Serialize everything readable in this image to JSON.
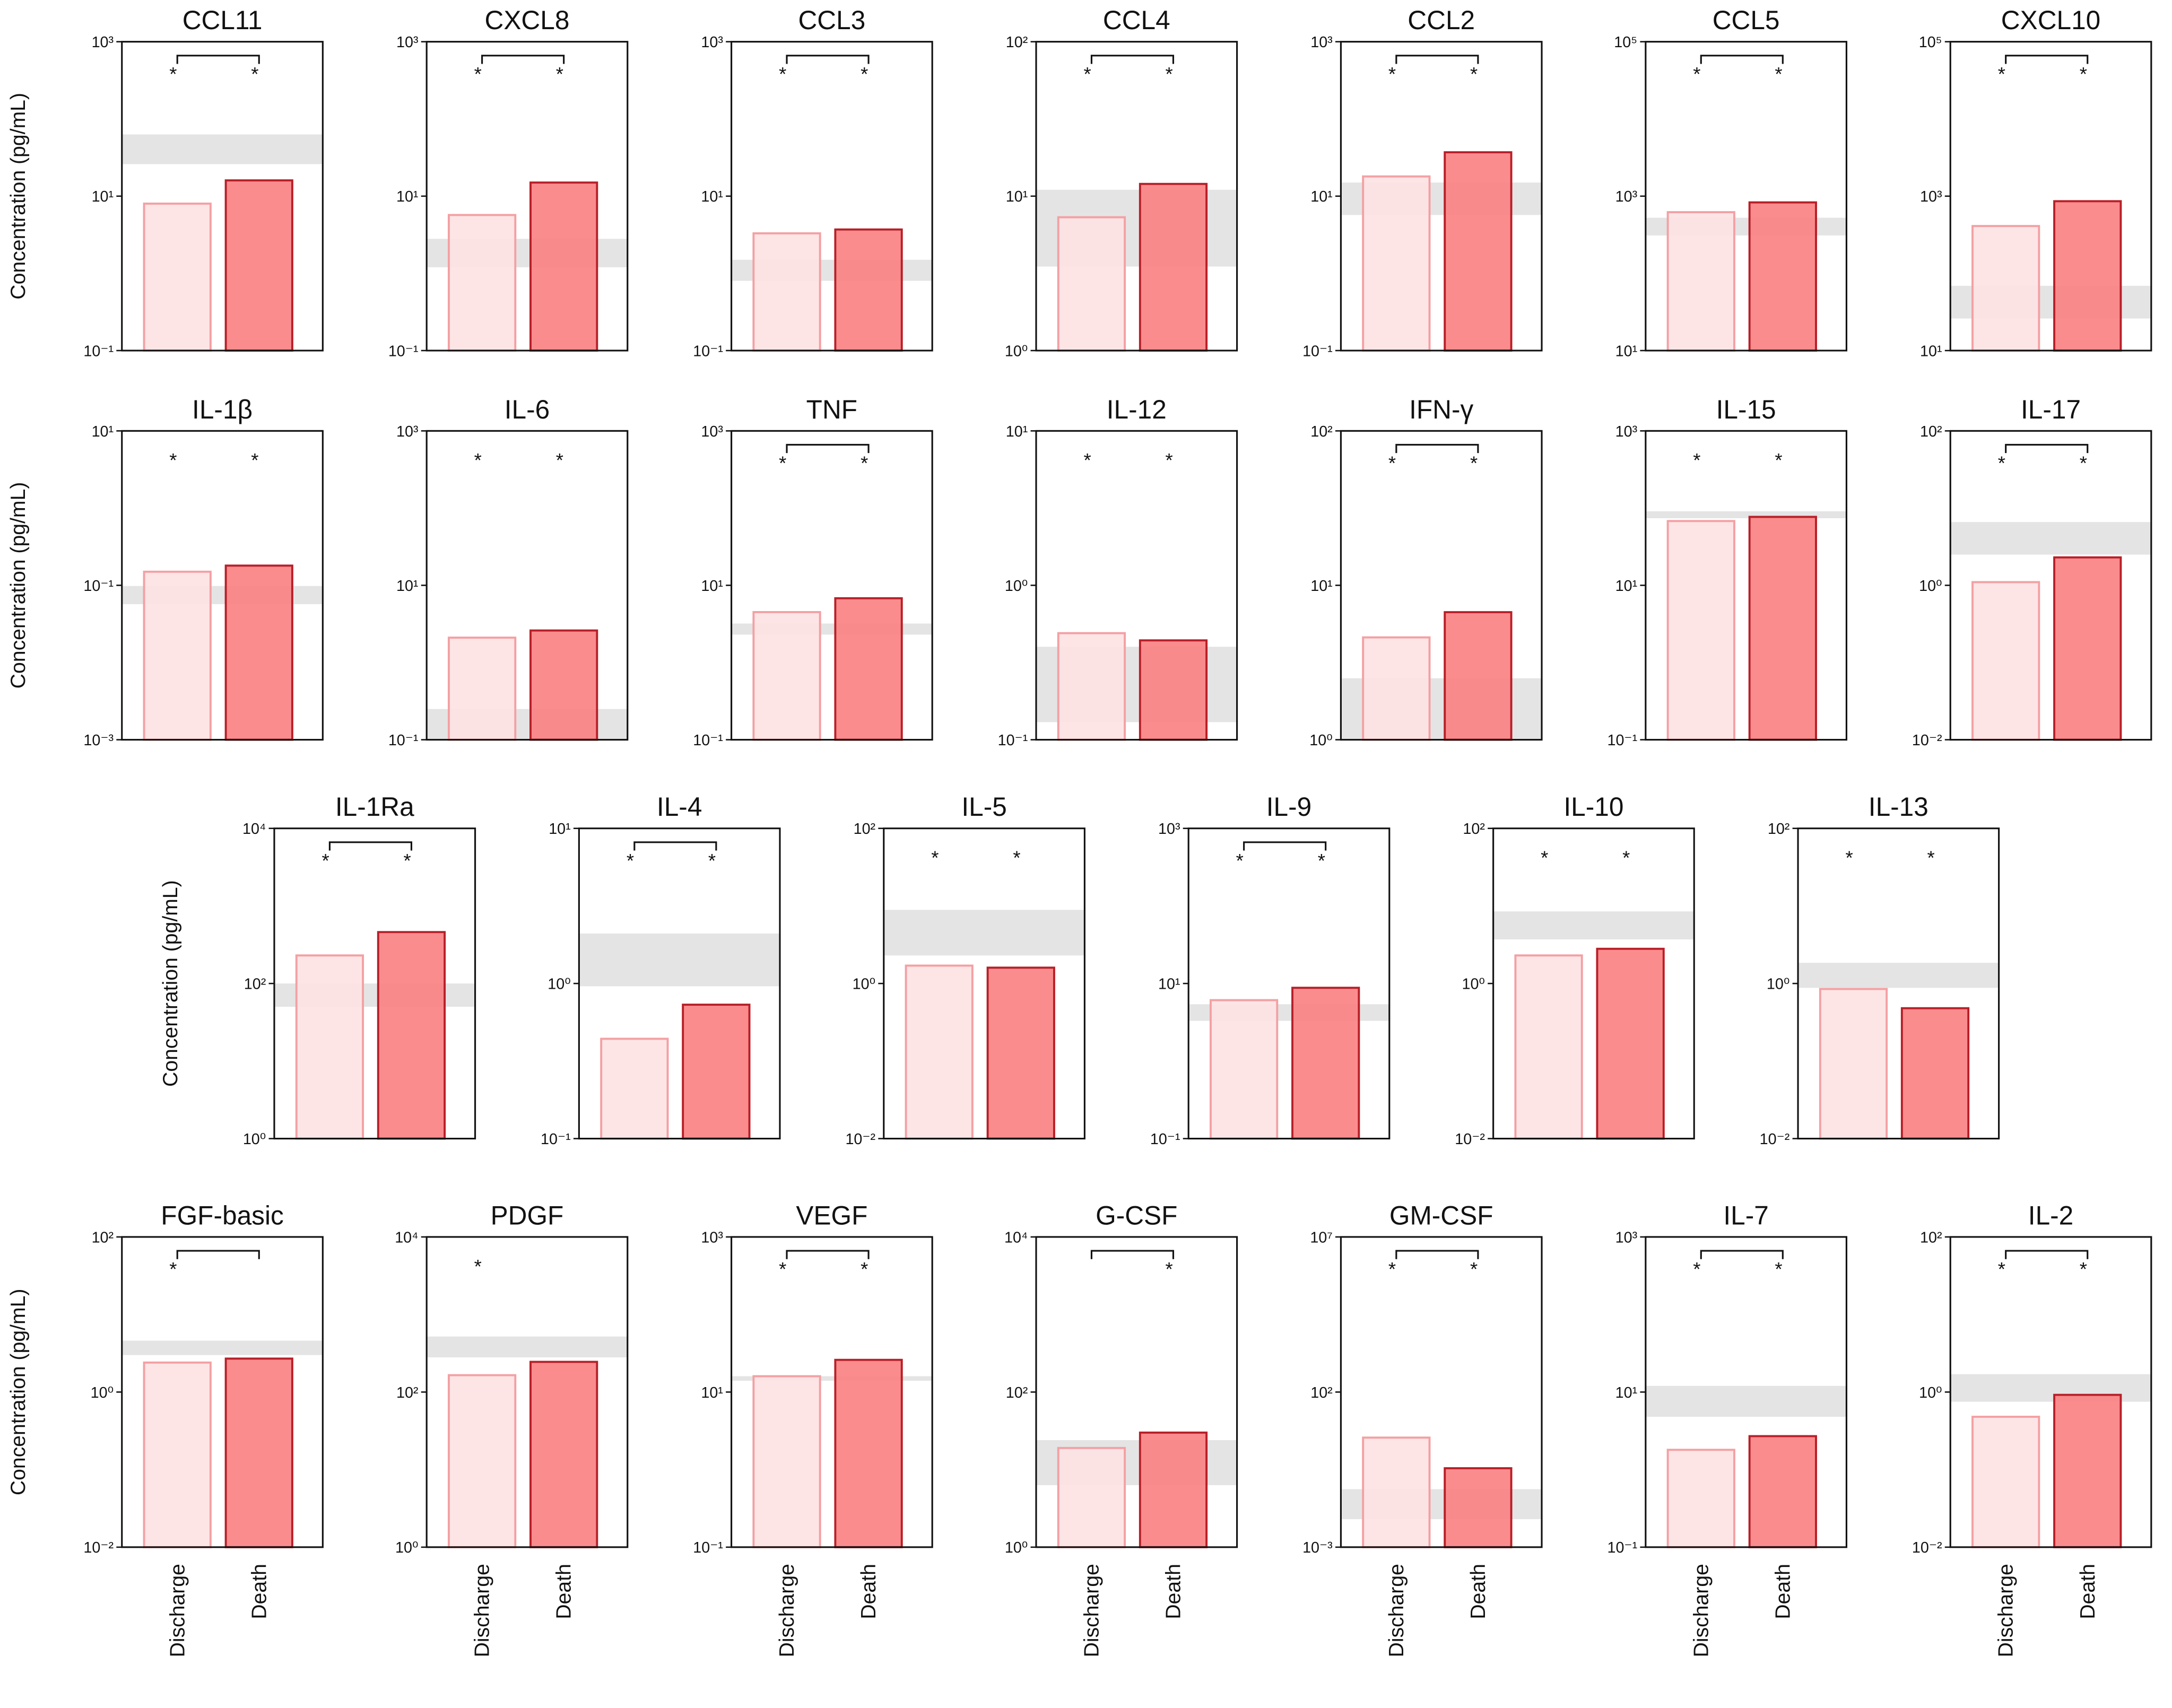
{
  "chart_data": [
    {
      "type": "bar",
      "title": "CCL11",
      "ylabel": "Concentration (pg/mL)",
      "values": [
        8,
        16
      ],
      "log": true,
      "ylim": [
        0.1,
        1000
      ],
      "yticks": [
        {
          "value": 0.1,
          "label": "10⁻¹"
        },
        {
          "value": 10,
          "label": "10¹"
        },
        {
          "value": 1000,
          "label": "10³"
        }
      ],
      "reference_range": [
        26,
        63
      ],
      "significance": true,
      "annotations": [
        "*",
        "*"
      ],
      "colors": [
        "#fde2e3",
        "#f97f82"
      ],
      "edge_colors": [
        "#f4a0a3",
        "#b81f27"
      ]
    },
    {
      "type": "bar",
      "title": "CXCL8",
      "values": [
        5.7,
        15
      ],
      "log": true,
      "ylim": [
        0.1,
        1000
      ],
      "yticks": [
        {
          "value": 0.1,
          "label": "10⁻¹"
        },
        {
          "value": 10,
          "label": "10¹"
        },
        {
          "value": 1000,
          "label": "10³"
        }
      ],
      "reference_range": [
        1.2,
        2.8
      ],
      "significance": true,
      "annotations": [
        "*",
        "*"
      ],
      "colors": [
        "#fde2e3",
        "#f97f82"
      ],
      "edge_colors": [
        "#f4a0a3",
        "#b81f27"
      ]
    },
    {
      "type": "bar",
      "title": "CCL3",
      "values": [
        3.3,
        3.7
      ],
      "log": true,
      "ylim": [
        0.1,
        1000
      ],
      "yticks": [
        {
          "value": 0.1,
          "label": "10⁻¹"
        },
        {
          "value": 10,
          "label": "10¹"
        },
        {
          "value": 1000,
          "label": "10³"
        }
      ],
      "reference_range": [
        0.8,
        1.5
      ],
      "significance": true,
      "annotations": [
        "*",
        "*"
      ],
      "colors": [
        "#fde2e3",
        "#f97f82"
      ],
      "edge_colors": [
        "#f4a0a3",
        "#b81f27"
      ]
    },
    {
      "type": "bar",
      "title": "CCL4",
      "values": [
        7.3,
        12
      ],
      "log": true,
      "ylim": [
        1,
        100
      ],
      "yticks": [
        {
          "value": 1,
          "label": "10⁰"
        },
        {
          "value": 10,
          "label": "10¹"
        },
        {
          "value": 100,
          "label": "10²"
        }
      ],
      "reference_range": [
        3.5,
        11
      ],
      "significance": true,
      "annotations": [
        "*",
        "*"
      ],
      "colors": [
        "#fde2e3",
        "#f97f82"
      ],
      "edge_colors": [
        "#f4a0a3",
        "#b81f27"
      ]
    },
    {
      "type": "bar",
      "title": "CCL2",
      "values": [
        18,
        37
      ],
      "log": true,
      "ylim": [
        0.1,
        1000
      ],
      "yticks": [
        {
          "value": 0.1,
          "label": "10⁻¹"
        },
        {
          "value": 10,
          "label": "10¹"
        },
        {
          "value": 1000,
          "label": "10³"
        }
      ],
      "reference_range": [
        5.7,
        15
      ],
      "significance": true,
      "annotations": [
        "*",
        "*"
      ],
      "colors": [
        "#fde2e3",
        "#f97f82"
      ],
      "edge_colors": [
        "#f4a0a3",
        "#b81f27"
      ]
    },
    {
      "type": "bar",
      "title": "CCL5",
      "values": [
        620,
        830
      ],
      "log": true,
      "ylim": [
        10,
        100000
      ],
      "yticks": [
        {
          "value": 10,
          "label": "10¹"
        },
        {
          "value": 1000,
          "label": "10³"
        },
        {
          "value": 100000,
          "label": "10⁵"
        }
      ],
      "reference_range": [
        310,
        525
      ],
      "significance": true,
      "annotations": [
        "*",
        "*"
      ],
      "colors": [
        "#fde2e3",
        "#f97f82"
      ],
      "edge_colors": [
        "#f4a0a3",
        "#b81f27"
      ]
    },
    {
      "type": "bar",
      "title": "CXCL10",
      "values": [
        410,
        860
      ],
      "log": true,
      "ylim": [
        10,
        100000
      ],
      "yticks": [
        {
          "value": 10,
          "label": "10¹"
        },
        {
          "value": 1000,
          "label": "10³"
        },
        {
          "value": 100000,
          "label": "10⁵"
        }
      ],
      "reference_range": [
        26,
        69
      ],
      "significance": true,
      "annotations": [
        "*",
        "*"
      ],
      "colors": [
        "#fde2e3",
        "#f97f82"
      ],
      "edge_colors": [
        "#f4a0a3",
        "#b81f27"
      ]
    },
    {
      "type": "bar",
      "title": "IL-1β",
      "ylabel": "Concentration (pg/mL)",
      "values": [
        0.15,
        0.18
      ],
      "log": true,
      "ylim": [
        0.001,
        10
      ],
      "yticks": [
        {
          "value": 0.001,
          "label": "10⁻³"
        },
        {
          "value": 0.1,
          "label": "10⁻¹"
        },
        {
          "value": 10,
          "label": "10¹"
        }
      ],
      "reference_range": [
        0.057,
        0.098
      ],
      "significance": false,
      "annotations": [
        "*",
        "*"
      ],
      "colors": [
        "#fde2e3",
        "#f97f82"
      ],
      "edge_colors": [
        "#f4a0a3",
        "#b81f27"
      ]
    },
    {
      "type": "bar",
      "title": "IL-6",
      "values": [
        2.1,
        2.6
      ],
      "log": true,
      "ylim": [
        0.1,
        1000
      ],
      "yticks": [
        {
          "value": 0.1,
          "label": "10⁻¹"
        },
        {
          "value": 10,
          "label": "10¹"
        },
        {
          "value": 1000,
          "label": "10³"
        }
      ],
      "reference_range": [
        0.1,
        0.25
      ],
      "significance": false,
      "annotations": [
        "*",
        "*"
      ],
      "colors": [
        "#fde2e3",
        "#f97f82"
      ],
      "edge_colors": [
        "#f4a0a3",
        "#b81f27"
      ]
    },
    {
      "type": "bar",
      "title": "TNF",
      "values": [
        4.5,
        6.8
      ],
      "log": true,
      "ylim": [
        0.1,
        1000
      ],
      "yticks": [
        {
          "value": 0.1,
          "label": "10⁻¹"
        },
        {
          "value": 10,
          "label": "10¹"
        },
        {
          "value": 1000,
          "label": "10³"
        }
      ],
      "reference_range": [
        2.3,
        3.2
      ],
      "significance": true,
      "annotations": [
        "*",
        "*"
      ],
      "colors": [
        "#fde2e3",
        "#f97f82"
      ],
      "edge_colors": [
        "#f4a0a3",
        "#b81f27"
      ]
    },
    {
      "type": "bar",
      "title": "IL-12",
      "values": [
        0.49,
        0.44
      ],
      "log": true,
      "ylim": [
        0.1,
        10
      ],
      "yticks": [
        {
          "value": 0.1,
          "label": "10⁻¹"
        },
        {
          "value": 1,
          "label": "10⁰"
        },
        {
          "value": 10,
          "label": "10¹"
        }
      ],
      "reference_range": [
        0.13,
        0.4
      ],
      "significance": false,
      "annotations": [
        "*",
        "*"
      ],
      "colors": [
        "#fde2e3",
        "#f97f82"
      ],
      "edge_colors": [
        "#f4a0a3",
        "#b81f27"
      ]
    },
    {
      "type": "bar",
      "title": "IFN-γ",
      "values": [
        4.6,
        6.7
      ],
      "log": true,
      "ylim": [
        1,
        100
      ],
      "yticks": [
        {
          "value": 1,
          "label": "10⁰"
        },
        {
          "value": 10,
          "label": "10¹"
        },
        {
          "value": 100,
          "label": "10²"
        }
      ],
      "reference_range": [
        1,
        2.5
      ],
      "significance": true,
      "annotations": [
        "*",
        "*"
      ],
      "colors": [
        "#fde2e3",
        "#f97f82"
      ],
      "edge_colors": [
        "#f4a0a3",
        "#b81f27"
      ]
    },
    {
      "type": "bar",
      "title": "IL-15",
      "values": [
        68,
        77
      ],
      "log": true,
      "ylim": [
        0.1,
        1000
      ],
      "yticks": [
        {
          "value": 0.1,
          "label": "10⁻¹"
        },
        {
          "value": 10,
          "label": "10¹"
        },
        {
          "value": 1000,
          "label": "10³"
        }
      ],
      "reference_range": [
        74,
        91
      ],
      "significance": false,
      "annotations": [
        "*",
        "*"
      ],
      "colors": [
        "#fde2e3",
        "#f97f82"
      ],
      "edge_colors": [
        "#f4a0a3",
        "#b81f27"
      ]
    },
    {
      "type": "bar",
      "title": "IL-17",
      "values": [
        1.1,
        2.3
      ],
      "log": true,
      "ylim": [
        0.01,
        100
      ],
      "yticks": [
        {
          "value": 0.01,
          "label": "10⁻²"
        },
        {
          "value": 1,
          "label": "10⁰"
        },
        {
          "value": 100,
          "label": "10²"
        }
      ],
      "reference_range": [
        2.5,
        6.6
      ],
      "significance": true,
      "annotations": [
        "*",
        "*"
      ],
      "colors": [
        "#fde2e3",
        "#f97f82"
      ],
      "edge_colors": [
        "#f4a0a3",
        "#b81f27"
      ]
    },
    {
      "type": "bar",
      "title": "IL-1Ra",
      "ylabel": "Concentration (pg/mL)",
      "values": [
        230,
        460
      ],
      "log": true,
      "ylim": [
        1,
        10000
      ],
      "yticks": [
        {
          "value": 1,
          "label": "10⁰"
        },
        {
          "value": 100,
          "label": "10²"
        },
        {
          "value": 10000,
          "label": "10⁴"
        }
      ],
      "reference_range": [
        50,
        100
      ],
      "significance": true,
      "annotations": [
        "*",
        "*"
      ],
      "colors": [
        "#fde2e3",
        "#f97f82"
      ],
      "edge_colors": [
        "#f4a0a3",
        "#b81f27"
      ]
    },
    {
      "type": "bar",
      "title": "IL-4",
      "values": [
        0.44,
        0.73
      ],
      "log": true,
      "ylim": [
        0.1,
        10
      ],
      "yticks": [
        {
          "value": 0.1,
          "label": "10⁻¹"
        },
        {
          "value": 1,
          "label": "10⁰"
        },
        {
          "value": 10,
          "label": "10¹"
        }
      ],
      "reference_range": [
        0.96,
        2.1
      ],
      "significance": true,
      "annotations": [
        "*",
        "*"
      ],
      "colors": [
        "#fde2e3",
        "#f97f82"
      ],
      "edge_colors": [
        "#f4a0a3",
        "#b81f27"
      ]
    },
    {
      "type": "bar",
      "title": "IL-5",
      "values": [
        1.7,
        1.6
      ],
      "log": true,
      "ylim": [
        0.01,
        100
      ],
      "yticks": [
        {
          "value": 0.01,
          "label": "10⁻²"
        },
        {
          "value": 1,
          "label": "10⁰"
        },
        {
          "value": 100,
          "label": "10²"
        }
      ],
      "reference_range": [
        2.3,
        8.9
      ],
      "significance": false,
      "annotations": [
        "*",
        "*"
      ],
      "colors": [
        "#fde2e3",
        "#f97f82"
      ],
      "edge_colors": [
        "#f4a0a3",
        "#b81f27"
      ]
    },
    {
      "type": "bar",
      "title": "IL-9",
      "values": [
        6.1,
        8.8
      ],
      "log": true,
      "ylim": [
        0.1,
        1000
      ],
      "yticks": [
        {
          "value": 0.1,
          "label": "10⁻¹"
        },
        {
          "value": 10,
          "label": "10¹"
        },
        {
          "value": 1000,
          "label": "10³"
        }
      ],
      "reference_range": [
        3.3,
        5.4
      ],
      "significance": true,
      "annotations": [
        "*",
        "*"
      ],
      "colors": [
        "#fde2e3",
        "#f97f82"
      ],
      "edge_colors": [
        "#f4a0a3",
        "#b81f27"
      ]
    },
    {
      "type": "bar",
      "title": "IL-10",
      "values": [
        2.3,
        2.8
      ],
      "log": true,
      "ylim": [
        0.01,
        100
      ],
      "yticks": [
        {
          "value": 0.01,
          "label": "10⁻²"
        },
        {
          "value": 1,
          "label": "10⁰"
        },
        {
          "value": 100,
          "label": "10²"
        }
      ],
      "reference_range": [
        3.7,
        8.5
      ],
      "significance": false,
      "annotations": [
        "*",
        "*"
      ],
      "colors": [
        "#fde2e3",
        "#f97f82"
      ],
      "edge_colors": [
        "#f4a0a3",
        "#b81f27"
      ]
    },
    {
      "type": "bar",
      "title": "IL-13",
      "values": [
        0.85,
        0.48
      ],
      "log": true,
      "ylim": [
        0.01,
        100
      ],
      "yticks": [
        {
          "value": 0.01,
          "label": "10⁻²"
        },
        {
          "value": 1,
          "label": "10⁰"
        },
        {
          "value": 100,
          "label": "10²"
        }
      ],
      "reference_range": [
        0.88,
        1.85
      ],
      "significance": false,
      "annotations": [
        "*",
        "*"
      ],
      "colors": [
        "#fde2e3",
        "#f97f82"
      ],
      "edge_colors": [
        "#f4a0a3",
        "#b81f27"
      ]
    },
    {
      "type": "bar",
      "title": "FGF-basic",
      "ylabel": "Concentration (pg/mL)",
      "categories": [
        "Discharge",
        "Death"
      ],
      "values": [
        2.4,
        2.7
      ],
      "log": true,
      "ylim": [
        0.01,
        100
      ],
      "yticks": [
        {
          "value": 0.01,
          "label": "10⁻²"
        },
        {
          "value": 1,
          "label": "10⁰"
        },
        {
          "value": 100,
          "label": "10²"
        }
      ],
      "reference_range": [
        3.0,
        4.6
      ],
      "significance": true,
      "annotations": [
        "*",
        null
      ],
      "colors": [
        "#fde2e3",
        "#f97f82"
      ],
      "edge_colors": [
        "#f4a0a3",
        "#b81f27"
      ]
    },
    {
      "type": "bar",
      "title": "PDGF",
      "categories": [
        "Discharge",
        "Death"
      ],
      "values": [
        165,
        245
      ],
      "log": true,
      "ylim": [
        1,
        10000
      ],
      "yticks": [
        {
          "value": 1,
          "label": "10⁰"
        },
        {
          "value": 100,
          "label": "10²"
        },
        {
          "value": 10000,
          "label": "10⁴"
        }
      ],
      "reference_range": [
        280,
        520
      ],
      "significance": false,
      "annotations": [
        "*",
        null
      ],
      "colors": [
        "#fde2e3",
        "#f97f82"
      ],
      "edge_colors": [
        "#f4a0a3",
        "#b81f27"
      ]
    },
    {
      "type": "bar",
      "title": "VEGF",
      "categories": [
        "Discharge",
        "Death"
      ],
      "values": [
        16,
        26
      ],
      "log": true,
      "ylim": [
        0.1,
        1000
      ],
      "yticks": [
        {
          "value": 0.1,
          "label": "10⁻¹"
        },
        {
          "value": 10,
          "label": "10¹"
        },
        {
          "value": 1000,
          "label": "10³"
        }
      ],
      "reference_range": [
        14,
        16
      ],
      "significance": true,
      "annotations": [
        "*",
        "*"
      ],
      "colors": [
        "#fde2e3",
        "#f97f82"
      ],
      "edge_colors": [
        "#f4a0a3",
        "#b81f27"
      ]
    },
    {
      "type": "bar",
      "title": "G-CSF",
      "categories": [
        "Discharge",
        "Death"
      ],
      "values": [
        19,
        30
      ],
      "log": true,
      "ylim": [
        1,
        10000
      ],
      "yticks": [
        {
          "value": 1,
          "label": "10⁰"
        },
        {
          "value": 100,
          "label": "10²"
        },
        {
          "value": 10000,
          "label": "10⁴"
        }
      ],
      "reference_range": [
        6.3,
        24
      ],
      "significance": true,
      "annotations": [
        null,
        "*"
      ],
      "colors": [
        "#fde2e3",
        "#f97f82"
      ],
      "edge_colors": [
        "#f4a0a3",
        "#b81f27"
      ]
    },
    {
      "type": "bar",
      "title": "GM-CSF",
      "categories": [
        "Discharge",
        "Death"
      ],
      "values": [
        3.4,
        0.35
      ],
      "log": true,
      "ylim": [
        0.001,
        10000000
      ],
      "yticks": [
        {
          "value": 0.001,
          "label": "10⁻³"
        },
        {
          "value": 100,
          "label": "10²"
        },
        {
          "value": 10000000,
          "label": "10⁷"
        }
      ],
      "reference_range": [
        0.008,
        0.074
      ],
      "significance": true,
      "annotations": [
        "*",
        "*"
      ],
      "colors": [
        "#fde2e3",
        "#f97f82"
      ],
      "edge_colors": [
        "#f4a0a3",
        "#b81f27"
      ]
    },
    {
      "type": "bar",
      "title": "IL-7",
      "categories": [
        "Discharge",
        "Death"
      ],
      "values": [
        1.8,
        2.7
      ],
      "log": true,
      "ylim": [
        0.1,
        1000
      ],
      "yticks": [
        {
          "value": 0.1,
          "label": "10⁻¹"
        },
        {
          "value": 10,
          "label": "10¹"
        },
        {
          "value": 1000,
          "label": "10³"
        }
      ],
      "reference_range": [
        4.8,
        12
      ],
      "significance": true,
      "annotations": [
        "*",
        "*"
      ],
      "colors": [
        "#fde2e3",
        "#f97f82"
      ],
      "edge_colors": [
        "#f4a0a3",
        "#b81f27"
      ]
    },
    {
      "type": "bar",
      "title": "IL-2",
      "categories": [
        "Discharge",
        "Death"
      ],
      "values": [
        0.48,
        0.92
      ],
      "log": true,
      "ylim": [
        0.01,
        100
      ],
      "yticks": [
        {
          "value": 0.01,
          "label": "10⁻²"
        },
        {
          "value": 1,
          "label": "10⁰"
        },
        {
          "value": 100,
          "label": "10²"
        }
      ],
      "reference_range": [
        0.75,
        1.7
      ],
      "significance": true,
      "annotations": [
        "*",
        "*"
      ],
      "colors": [
        "#fde2e3",
        "#f97f82"
      ],
      "edge_colors": [
        "#f4a0a3",
        "#b81f27"
      ]
    }
  ]
}
